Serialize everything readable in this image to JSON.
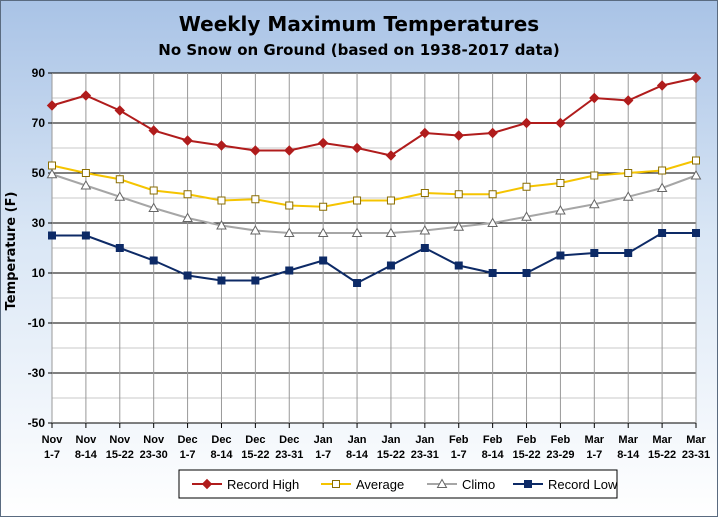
{
  "chart_data": {
    "type": "line",
    "title": "Weekly Maximum Temperatures",
    "subtitle": "No Snow on Ground (based on 1938-2017 data)",
    "xlabel": "",
    "ylabel": "Temperature (F)",
    "ylim": [
      -50,
      90
    ],
    "yticks": [
      90,
      70,
      50,
      30,
      10,
      -10,
      -30,
      -50
    ],
    "grid": true,
    "legend_position": "bottom",
    "categories": [
      [
        "Nov",
        "1-7"
      ],
      [
        "Nov",
        "8-14"
      ],
      [
        "Nov",
        "15-22"
      ],
      [
        "Nov",
        "23-30"
      ],
      [
        "Dec",
        "1-7"
      ],
      [
        "Dec",
        "8-14"
      ],
      [
        "Dec",
        "15-22"
      ],
      [
        "Dec",
        "23-31"
      ],
      [
        "Jan",
        "1-7"
      ],
      [
        "Jan",
        "8-14"
      ],
      [
        "Jan",
        "15-22"
      ],
      [
        "Jan",
        "23-31"
      ],
      [
        "Feb",
        "1-7"
      ],
      [
        "Feb",
        "8-14"
      ],
      [
        "Feb",
        "15-22"
      ],
      [
        "Feb",
        "23-29"
      ],
      [
        "Mar",
        "1-7"
      ],
      [
        "Mar",
        "8-14"
      ],
      [
        "Mar",
        "15-22"
      ],
      [
        "Mar",
        "23-31"
      ]
    ],
    "series": [
      {
        "name": "Record High",
        "color": "#b01c1c",
        "marker": "diamond",
        "values": [
          77,
          81,
          75,
          67,
          63,
          61,
          59,
          59,
          62,
          60,
          57,
          66,
          65,
          66,
          70,
          70,
          80,
          79,
          85,
          88
        ]
      },
      {
        "name": "Average",
        "color": "#f5c400",
        "marker": "square",
        "values": [
          53,
          50,
          47.5,
          43,
          41.5,
          39,
          39.5,
          37,
          36.5,
          39,
          39,
          42,
          41.5,
          41.5,
          44.5,
          46,
          49,
          50,
          51,
          55
        ]
      },
      {
        "name": "Climo",
        "color": "#a6a6a6",
        "marker": "triangle",
        "values": [
          49.5,
          45,
          40.5,
          36,
          32,
          29,
          27,
          26,
          26,
          26,
          26,
          27,
          28.5,
          30,
          32.5,
          35,
          37.5,
          40.5,
          44,
          49
        ]
      },
      {
        "name": "Record Low",
        "color": "#0d2a66",
        "marker": "square",
        "values": [
          25,
          25,
          20,
          15,
          9,
          7,
          7,
          11,
          15,
          6,
          13,
          20,
          13,
          10,
          10,
          17,
          18,
          18,
          26,
          26
        ]
      }
    ]
  }
}
